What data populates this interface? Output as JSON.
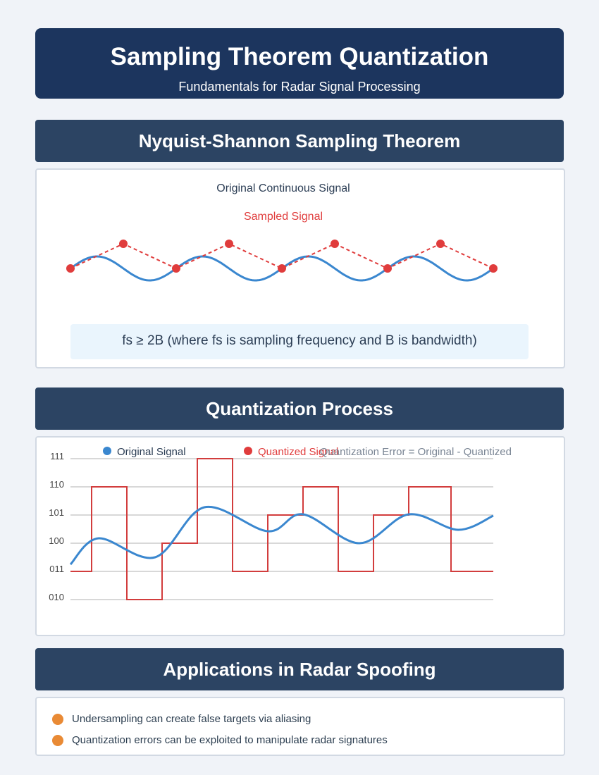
{
  "header": {
    "title": "Sampling Theorem Quantization",
    "subtitle": "Fundamentals for Radar Signal Processing"
  },
  "sampling": {
    "heading": "Nyquist-Shannon Sampling Theorem",
    "continuous_label": "Original Continuous Signal",
    "sampled_label": "Sampled Signal",
    "formula": "fs ≥ 2B (where fs is sampling frequency and B is bandwidth)",
    "colors": {
      "continuous": "#3a87cf",
      "sampled": "#e03c3c"
    }
  },
  "quantization": {
    "heading": "Quantization Process",
    "legend": {
      "original": "Original Signal",
      "quantized": "Quantized Signal",
      "error_note": "Quantization Error = Original - Quantized"
    },
    "levels": [
      "111",
      "110",
      "101",
      "100",
      "011",
      "010"
    ],
    "colors": {
      "original": "#3a87cf",
      "quantized": "#d23d3d",
      "grid": "#cccccc"
    }
  },
  "applications": {
    "heading": "Applications in Radar Spoofing",
    "items": [
      "Undersampling can create false targets via aliasing",
      "Quantization errors can be exploited to manipulate radar signatures"
    ],
    "bullet_color": "#e98a35"
  },
  "chart_data": [
    {
      "type": "line",
      "title": "",
      "series": [
        {
          "name": "Sampled Signal",
          "x": [
            0,
            1,
            2,
            3,
            4,
            5,
            6,
            7,
            8
          ],
          "values": [
            0,
            1,
            0,
            1,
            0,
            1,
            0,
            1,
            0
          ]
        }
      ]
    },
    {
      "type": "line",
      "title": "",
      "ylabel": "",
      "y_tick_labels": [
        "111",
        "110",
        "101",
        "100",
        "011",
        "010"
      ],
      "series": [
        {
          "name": "Quantized Signal",
          "x": [
            0,
            1,
            2,
            3,
            4,
            5,
            6,
            7,
            8,
            9,
            10,
            11
          ],
          "values": [
            "011",
            "110",
            "010",
            "100",
            "111",
            "011",
            "101",
            "110",
            "011",
            "101",
            "110",
            "011"
          ]
        }
      ]
    }
  ]
}
